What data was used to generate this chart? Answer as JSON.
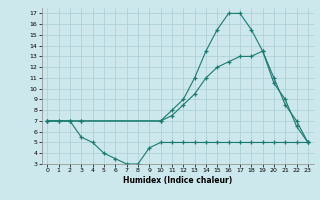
{
  "xlabel": "Humidex (Indice chaleur)",
  "bg_color": "#cce8ec",
  "line_color": "#1a7a6e",
  "grid_color": "#aacdd4",
  "xlim": [
    -0.5,
    23.5
  ],
  "ylim": [
    3,
    17.5
  ],
  "xticks": [
    0,
    1,
    2,
    3,
    4,
    5,
    6,
    7,
    8,
    9,
    10,
    11,
    12,
    13,
    14,
    15,
    16,
    17,
    18,
    19,
    20,
    21,
    22,
    23
  ],
  "yticks": [
    3,
    4,
    5,
    6,
    7,
    8,
    9,
    10,
    11,
    12,
    13,
    14,
    15,
    16,
    17
  ],
  "line1_x": [
    0,
    1,
    2,
    3,
    10,
    11,
    12,
    13,
    14,
    15,
    16,
    17,
    18,
    19,
    20,
    21,
    22,
    23
  ],
  "line1_y": [
    7,
    7,
    7,
    7,
    7,
    8,
    9,
    11,
    13.5,
    15.5,
    17,
    17,
    15.5,
    13.5,
    11,
    8.5,
    7,
    5
  ],
  "line2_x": [
    0,
    1,
    2,
    3,
    4,
    5,
    6,
    7,
    8,
    9,
    10,
    11,
    12,
    13,
    14,
    15,
    16,
    17,
    18,
    19,
    20,
    21,
    22,
    23
  ],
  "line2_y": [
    7,
    7,
    7,
    5.5,
    5,
    4,
    3.5,
    3,
    3,
    4.5,
    5,
    5,
    5,
    5,
    5,
    5,
    5,
    5,
    5,
    5,
    5,
    5,
    5,
    5
  ],
  "line3_x": [
    0,
    3,
    10,
    11,
    12,
    13,
    14,
    15,
    16,
    17,
    18,
    19,
    20,
    21,
    22,
    23
  ],
  "line3_y": [
    7,
    7,
    7,
    7.5,
    8.5,
    9.5,
    11,
    12,
    12.5,
    13,
    13,
    13.5,
    10.5,
    9,
    6.5,
    5
  ]
}
